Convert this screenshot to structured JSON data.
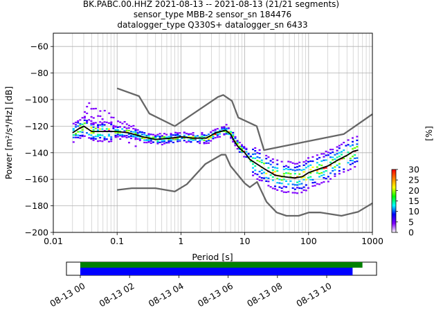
{
  "title_lines": [
    "BK.PABC.00.HHZ   2021-08-13 -- 2021-08-13  (21/21 segments)",
    "sensor_type MBB-2 sensor_sn 184476",
    "datalogger_type Q330S+ datalogger_sn 6433"
  ],
  "colorbar": {
    "label": "[%]",
    "ticks": [
      "0",
      "5",
      "10",
      "15",
      "20",
      "25",
      "30"
    ],
    "colors": [
      "#ffffff",
      "#8000ff",
      "#0000ff",
      "#00ffff",
      "#00ff00",
      "#ffff00",
      "#ff8000",
      "#ff0000"
    ]
  },
  "timeline": {
    "ticks": [
      "08-13 00",
      "08-13 02",
      "08-13 04",
      "08-13 06",
      "08-13 08",
      "08-13 10"
    ],
    "green_bar": {
      "start_hour": 0.0,
      "end_hour": 11.45,
      "color": "#008000"
    },
    "blue_bar": {
      "start_hour": 0.0,
      "end_hour": 11.05,
      "color": "#0000ff"
    }
  },
  "chart_data": {
    "type": "line",
    "title": "BK.PABC.00.HHZ   2021-08-13 -- 2021-08-13  (21/21 segments)",
    "xlabel": "Period [s]",
    "ylabel": "Power [m²/s⁴/Hz] [dB]",
    "xscale": "log",
    "xlim": [
      0.01,
      1000
    ],
    "ylim": [
      -200,
      -50
    ],
    "x_ticks": [
      "0.01",
      "0.1",
      "1",
      "10",
      "100",
      "1000"
    ],
    "y_ticks": [
      "−60",
      "−80",
      "−100",
      "−120",
      "−140",
      "−160",
      "−180",
      "−200"
    ],
    "grid": true,
    "series": [
      {
        "role": "noise-model-high",
        "color": "#666666",
        "x": [
          0.1,
          0.22,
          0.32,
          0.8,
          3.8,
          4.6,
          6.3,
          7.9,
          15.4,
          20,
          354.8,
          1000
        ],
        "y": [
          -91.5,
          -97.4,
          -110.5,
          -120,
          -98,
          -96.5,
          -101,
          -113.5,
          -120,
          -138,
          -126,
          -111
        ]
      },
      {
        "role": "noise-model-low",
        "color": "#666666",
        "x": [
          0.1,
          0.17,
          0.4,
          0.8,
          1.24,
          2.4,
          4.3,
          5.0,
          6.0,
          10.0,
          12.0,
          15.6,
          21.9,
          31.6,
          45,
          70,
          101,
          154,
          328,
          600,
          1000
        ],
        "y": [
          -168,
          -166.7,
          -166.7,
          -169.2,
          -163.7,
          -148.6,
          -141.5,
          -141.5,
          -150,
          -163,
          -166,
          -162,
          -177,
          -185,
          -187.5,
          -187.5,
          -185,
          -185,
          -187.5,
          -184.5,
          -178
        ]
      },
      {
        "role": "mode",
        "color": "#000000",
        "x": [
          0.02,
          0.025,
          0.03,
          0.04,
          0.06,
          0.1,
          0.15,
          0.25,
          0.4,
          0.7,
          1.0,
          1.5,
          2.5,
          3.5,
          5.0,
          6.0,
          7.0,
          8.0,
          10,
          12,
          15,
          20,
          30,
          40,
          60,
          80,
          100,
          150,
          200,
          300,
          400,
          500,
          600
        ],
        "y": [
          -125,
          -122,
          -120,
          -124,
          -124,
          -124,
          -125,
          -128,
          -130,
          -129,
          -128,
          -129,
          -129,
          -125,
          -123,
          -126,
          -132,
          -136,
          -140,
          -145,
          -148,
          -152,
          -157,
          -158,
          -159,
          -158,
          -155,
          -152,
          -150,
          -145,
          -142,
          -139,
          -138
        ]
      }
    ],
    "colorbar": {
      "label": "[%]",
      "range": [
        0,
        30
      ],
      "ticks": [
        0,
        5,
        10,
        15,
        20,
        25,
        30
      ]
    }
  }
}
